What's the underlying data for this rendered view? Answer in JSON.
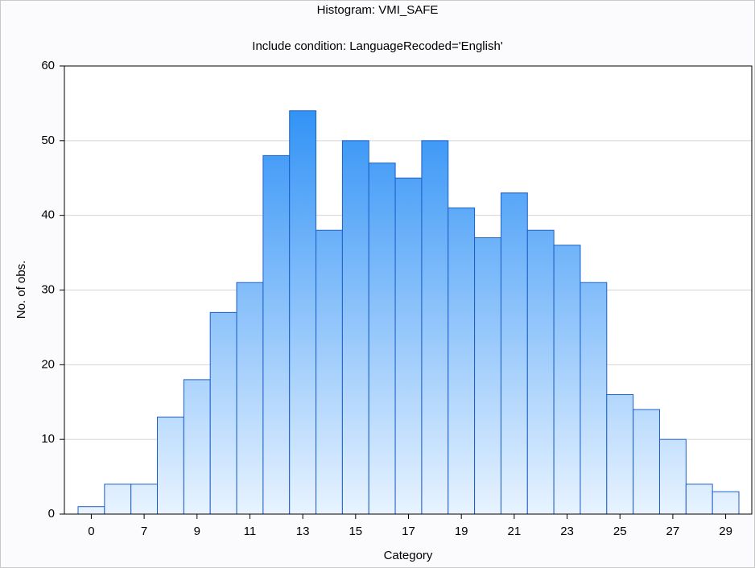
{
  "chart_data": {
    "type": "bar",
    "title": "Histogram: VMI_SAFE",
    "subtitle": "Include condition: LanguageRecoded='English'",
    "xlabel": "Category",
    "ylabel": "No. of obs.",
    "categories": [
      "0",
      null,
      "7",
      null,
      "9",
      null,
      "11",
      null,
      "13",
      null,
      "15",
      null,
      "17",
      null,
      "19",
      null,
      "21",
      null,
      "23",
      null,
      "25",
      null,
      "27",
      null,
      "29"
    ],
    "values": [
      1,
      4,
      4,
      13,
      18,
      27,
      31,
      48,
      54,
      38,
      50,
      47,
      45,
      50,
      41,
      37,
      43,
      38,
      36,
      31,
      16,
      14,
      10,
      4,
      3
    ],
    "color": "#1e88f5",
    "ylim": [
      0,
      60
    ],
    "yticks": [
      0,
      10,
      20,
      30,
      40,
      50,
      60
    ],
    "grid": true
  }
}
